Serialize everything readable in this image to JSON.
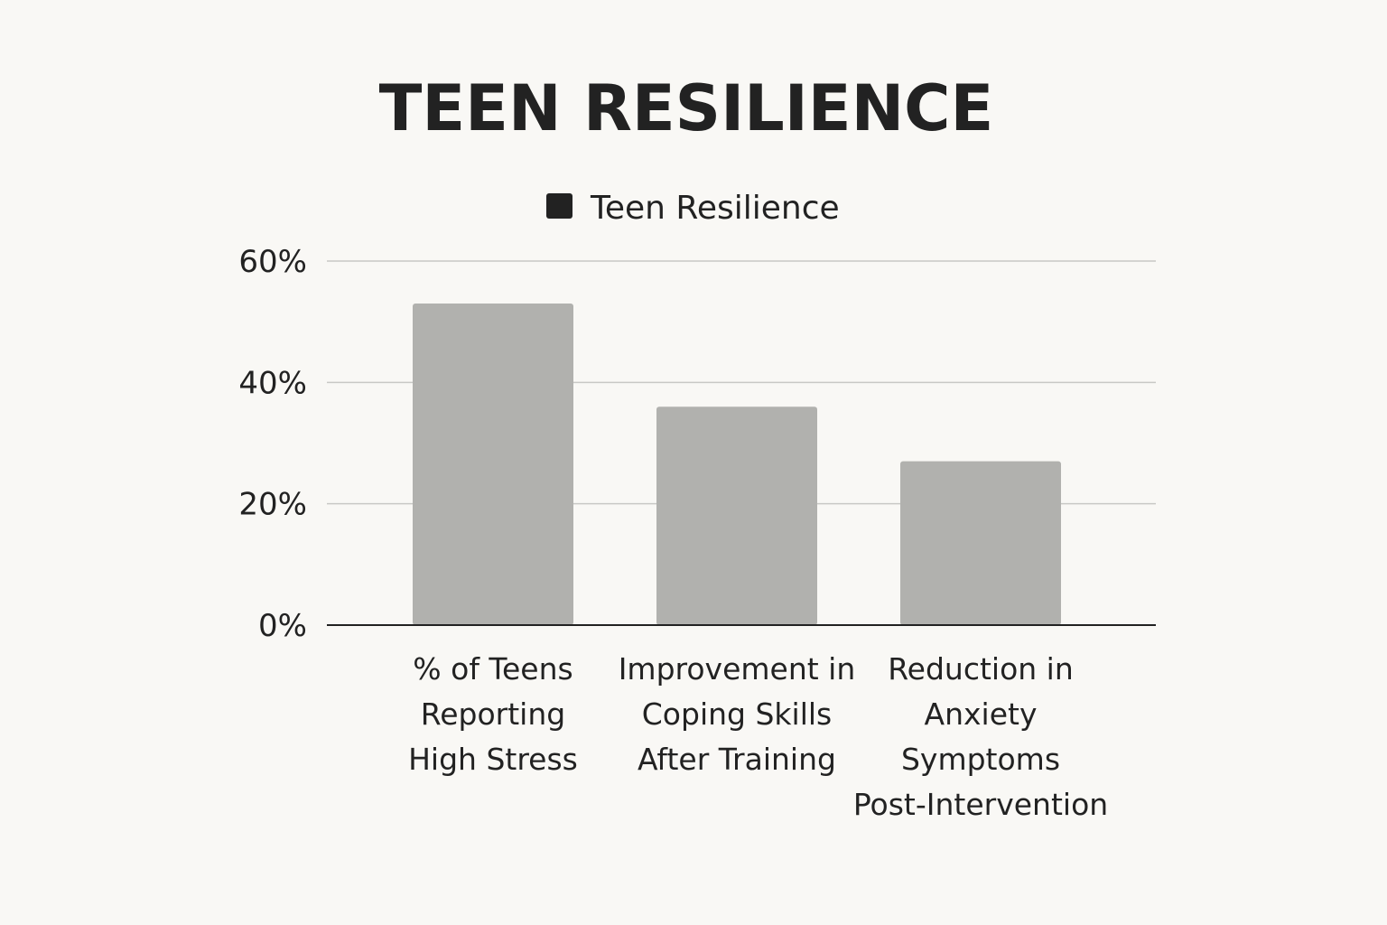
{
  "chart_data": {
    "type": "bar",
    "title": "TEEN RESILIENCE",
    "legend": {
      "entries": [
        "Teen Resilience"
      ],
      "placement": "top-center"
    },
    "categories": [
      [
        "% of Teens",
        "Reporting",
        "High Stress"
      ],
      [
        "Improvement in",
        "Coping Skills",
        "After Training"
      ],
      [
        "Reduction in",
        "Anxiety",
        "Symptoms",
        "Post-Intervention"
      ]
    ],
    "series": [
      {
        "name": "Teen Resilience",
        "values": [
          53,
          36,
          27
        ],
        "color": "#b1b1ae"
      }
    ],
    "ylim": [
      0,
      60
    ],
    "yticks": [
      0,
      20,
      40,
      60
    ],
    "ytick_labels": [
      "0%",
      "20%",
      "40%",
      "60%"
    ],
    "grid": true,
    "xlabel": "",
    "ylabel": "",
    "colors": {
      "text": "#222222",
      "gridline": "#c8c8c5",
      "axis": "#222222",
      "legend_swatch": "#222222",
      "background": "#f9f8f5"
    }
  }
}
